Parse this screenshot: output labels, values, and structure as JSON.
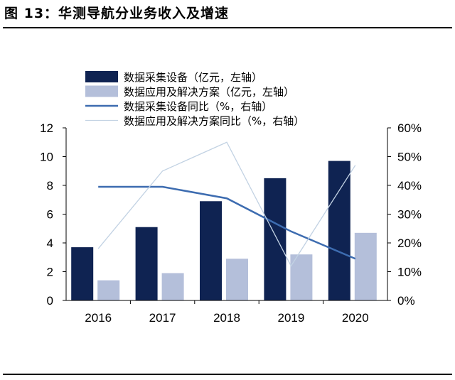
{
  "figure_title": "图 13：华测导航分业务收入及增速",
  "chart_data": {
    "type": "bar+line",
    "categories": [
      "2016",
      "2017",
      "2018",
      "2019",
      "2020"
    ],
    "series": [
      {
        "name": "数据采集设备（亿元，左轴）",
        "type": "bar",
        "axis": "left",
        "color": "#0f2352",
        "values": [
          3.7,
          5.1,
          6.9,
          8.5,
          9.7
        ]
      },
      {
        "name": "数据应用及解决方案（亿元，左轴）",
        "type": "bar",
        "axis": "left",
        "color": "#b4bfda",
        "values": [
          1.4,
          1.9,
          2.9,
          3.2,
          4.7
        ]
      },
      {
        "name": "数据采集设备同比（%，右轴）",
        "type": "line",
        "axis": "right",
        "color": "#3d6cb0",
        "values": [
          39.5,
          39.5,
          35.5,
          24,
          14.5
        ]
      },
      {
        "name": "数据应用及解决方案同比（%，右轴）",
        "type": "line",
        "axis": "right",
        "color": "#c2d2e3",
        "values": [
          18,
          45,
          55,
          12,
          47
        ]
      }
    ],
    "left_axis": {
      "min": 0,
      "max": 12,
      "ticks": [
        0,
        2,
        4,
        6,
        8,
        10,
        12
      ]
    },
    "right_axis": {
      "min": 0,
      "max": 60,
      "ticks": [
        "0%",
        "10%",
        "20%",
        "30%",
        "40%",
        "50%",
        "60%"
      ]
    },
    "legend_position": "top-left",
    "grid": false
  }
}
